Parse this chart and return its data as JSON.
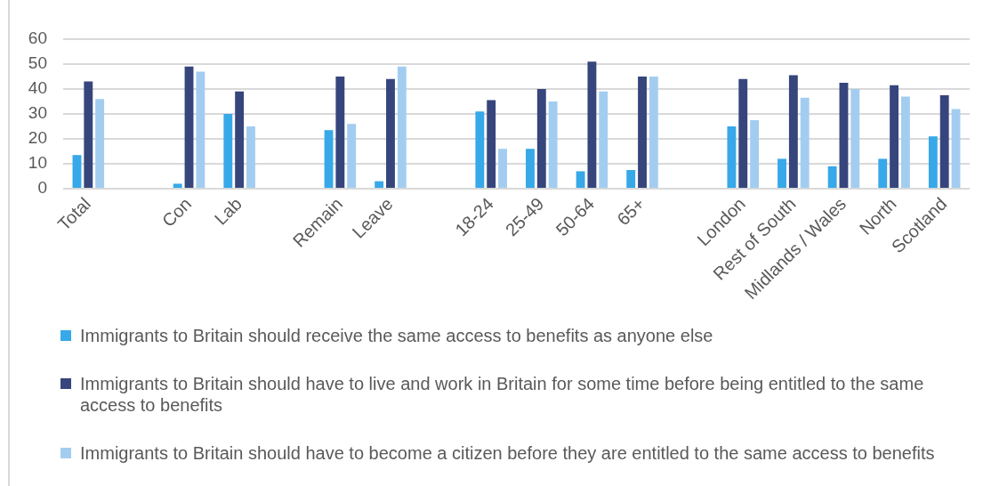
{
  "chart_data": {
    "type": "bar",
    "categories": [
      "Total",
      null,
      "Con",
      "Lab",
      null,
      "Remain",
      "Leave",
      null,
      "18-24",
      "25-49",
      "50-64",
      "65+",
      null,
      "London",
      "Rest of South",
      "Midlands / Wales",
      "North",
      "Scotland"
    ],
    "series": [
      {
        "name": "Immigrants to Britain should receive the same access to benefits as anyone else",
        "color": "#37a8e8",
        "values": [
          13.5,
          null,
          2,
          30,
          null,
          23.5,
          3,
          null,
          31,
          16,
          7,
          7.5,
          null,
          25,
          12,
          9,
          12,
          21
        ]
      },
      {
        "name": "Immigrants to Britain should have to live and work in Britain for some time before being entitled to the same access to benefits",
        "color": "#36457c",
        "values": [
          43,
          null,
          49,
          39,
          null,
          45,
          44,
          null,
          35.5,
          40,
          51,
          45,
          null,
          44,
          45.5,
          42.5,
          41.5,
          37.5
        ]
      },
      {
        "name": "Immigrants to Britain should have to become a citizen before they are entitled to the same access to benefits",
        "color": "#a3cdf0",
        "values": [
          36,
          null,
          47,
          25,
          null,
          26,
          49,
          null,
          16,
          35,
          39,
          45,
          null,
          27.5,
          36.5,
          40,
          37,
          32
        ]
      }
    ],
    "ylim": [
      0,
      60
    ],
    "yticks": [
      0,
      10,
      20,
      30,
      40,
      50,
      60
    ],
    "grid": "y",
    "legend": "bottom"
  }
}
